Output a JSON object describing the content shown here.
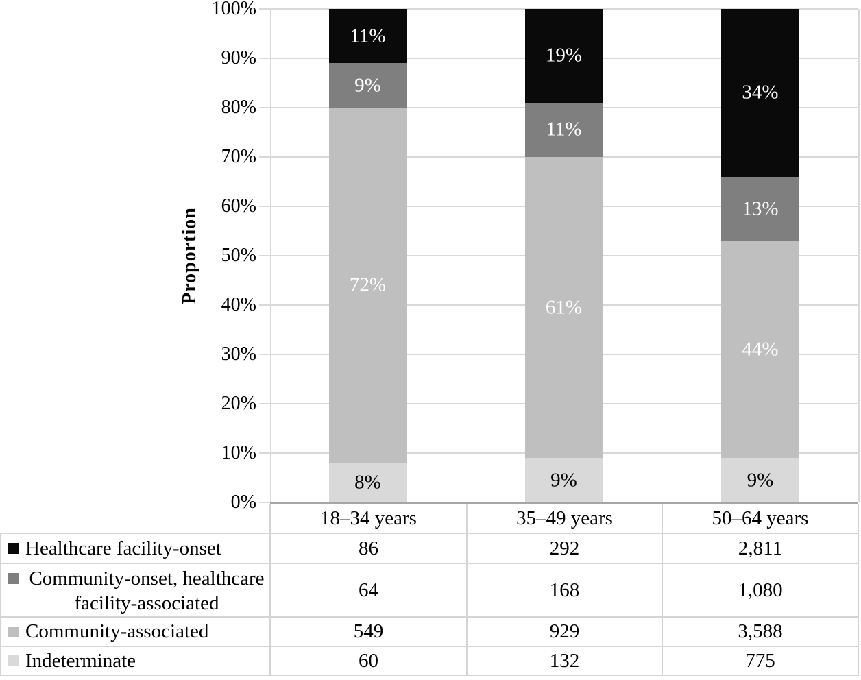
{
  "colors": {
    "healthcare_facility_onset": "#0a0a0a",
    "community_onset_hcfa": "#7f7f7f",
    "community_associated": "#bfbfbf",
    "indeterminate": "#d9d9d9",
    "gridline": "#d9d9d9",
    "axis_line": "#a6a6a6",
    "table_border": "#d4d4d4",
    "bar_label_light": "#ffffff",
    "bar_label_dark": "#000000"
  },
  "chart_data": {
    "type": "bar",
    "subtype": "stacked-100pct",
    "title": "",
    "xlabel": "",
    "ylabel": "Proportion",
    "ylim": [
      0,
      100
    ],
    "y_ticks": [
      "0%",
      "10%",
      "20%",
      "30%",
      "40%",
      "50%",
      "60%",
      "70%",
      "80%",
      "90%",
      "100%"
    ],
    "grid": "horizontal",
    "legend_position": "table-left",
    "categories": [
      "18–34 years",
      "35–49 years",
      "50–64 years"
    ],
    "series": [
      {
        "name": "Indeterminate",
        "color": "#d9d9d9",
        "label_color": "#000000",
        "values_pct": [
          8,
          9,
          9
        ],
        "counts": [
          60,
          132,
          775
        ]
      },
      {
        "name": "Community-associated",
        "color": "#bfbfbf",
        "label_color": "#ffffff",
        "values_pct": [
          72,
          61,
          44
        ],
        "counts": [
          549,
          929,
          3588
        ]
      },
      {
        "name": "Community-onset, healthcare facility-associated",
        "color": "#7f7f7f",
        "label_color": "#ffffff",
        "values_pct": [
          9,
          11,
          13
        ],
        "counts": [
          64,
          168,
          1080
        ]
      },
      {
        "name": "Healthcare facility-onset",
        "color": "#0a0a0a",
        "label_color": "#ffffff",
        "values_pct": [
          11,
          19,
          34
        ],
        "counts": [
          86,
          292,
          2811
        ]
      }
    ]
  },
  "table": {
    "rows": [
      {
        "label": "Healthcare facility-onset",
        "swatch": "#0a0a0a",
        "values": [
          "86",
          "292",
          "2,811"
        ]
      },
      {
        "label_line1": "Community-onset, healthcare",
        "label_line2": "facility-associated",
        "swatch": "#7f7f7f",
        "values": [
          "64",
          "168",
          "1,080"
        ]
      },
      {
        "label": "Community-associated",
        "swatch": "#bfbfbf",
        "values": [
          "549",
          "929",
          "3,588"
        ]
      },
      {
        "label": "Indeterminate",
        "swatch": "#d9d9d9",
        "values": [
          "60",
          "132",
          "775"
        ]
      }
    ]
  }
}
